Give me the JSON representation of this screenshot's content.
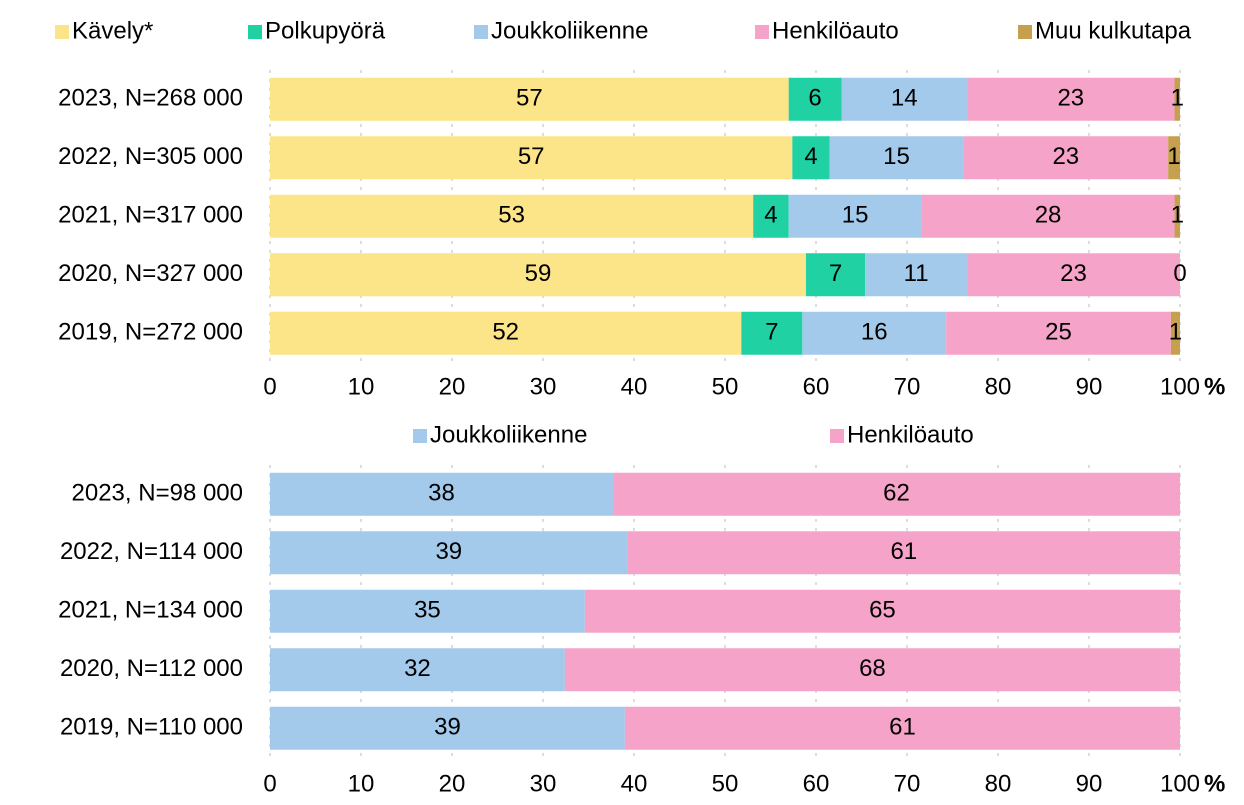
{
  "chart_data": [
    {
      "type": "stacked_barh",
      "categories": [
        "2023, N=268 000",
        "2022, N=305 000",
        "2021, N=317 000",
        "2020, N=327 000",
        "2019, N=272 000"
      ],
      "series": [
        {
          "name": "Kävely*",
          "color": "#fce588",
          "values": [
            57.0,
            57.4,
            53.1,
            58.9,
            51.8
          ],
          "value_labels": [
            57,
            57,
            53,
            59,
            52
          ]
        },
        {
          "name": "Polkupyörä",
          "color": "#1fd1a3",
          "values": [
            5.8,
            4.1,
            3.9,
            6.5,
            6.7
          ],
          "value_labels": [
            6,
            4,
            4,
            7,
            7
          ]
        },
        {
          "name": "Joukkoliikenne",
          "color": "#a3c9eb",
          "values": [
            13.8,
            14.7,
            14.6,
            11.2,
            15.8
          ],
          "value_labels": [
            14,
            15,
            15,
            11,
            16
          ]
        },
        {
          "name": "Henkilöauto",
          "color": "#f5a3c8",
          "values": [
            22.8,
            22.5,
            27.8,
            23.4,
            24.7
          ],
          "value_labels": [
            23,
            23,
            28,
            23,
            25
          ]
        },
        {
          "name": "Muu kulkutapa",
          "color": "#c6a04e",
          "values": [
            0.6,
            1.3,
            0.6,
            0,
            1.0
          ],
          "value_labels": [
            1,
            1,
            1,
            0,
            1
          ]
        }
      ],
      "xlim": [
        0,
        100
      ],
      "xticks": [
        0,
        10,
        20,
        30,
        40,
        50,
        60,
        70,
        80,
        90,
        100
      ],
      "xlabel": "%",
      "grid": true
    },
    {
      "type": "stacked_barh",
      "categories": [
        "2023, N=98 000",
        "2022, N=114 000",
        "2021, N=134 000",
        "2020, N=112 000",
        "2019, N=110 000"
      ],
      "series": [
        {
          "name": "Joukkoliikenne",
          "color": "#a3c9eb",
          "values": [
            37.7,
            39.3,
            34.6,
            32.4,
            39.0
          ],
          "value_labels": [
            38,
            39,
            35,
            32,
            39
          ]
        },
        {
          "name": "Henkilöauto",
          "color": "#f5a3c8",
          "values": [
            62.3,
            60.7,
            65.4,
            67.6,
            61.0
          ],
          "value_labels": [
            62,
            61,
            65,
            68,
            61
          ]
        }
      ],
      "xlim": [
        0,
        100
      ],
      "xticks": [
        0,
        10,
        20,
        30,
        40,
        50,
        60,
        70,
        80,
        90,
        100
      ],
      "xlabel": "%",
      "grid": true
    }
  ]
}
